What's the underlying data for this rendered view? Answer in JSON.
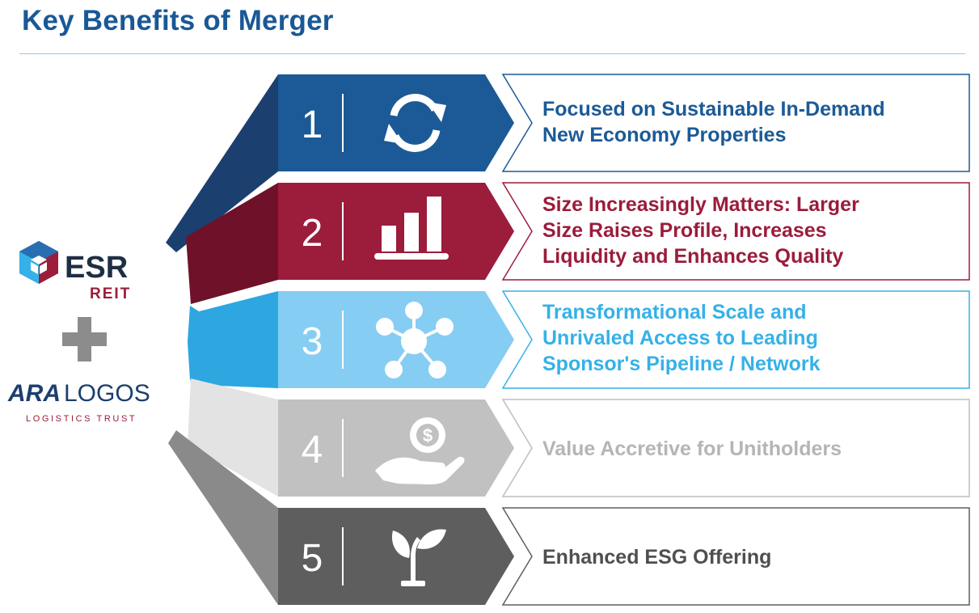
{
  "page": {
    "title": "Key Benefits of Merger"
  },
  "logos": {
    "esr": {
      "name": "ESR",
      "sub": "REIT"
    },
    "ara": {
      "prefix": "ARA",
      "name": "LOGOS",
      "sub": "LOGISTICS TRUST"
    },
    "plus_icon": "plus-icon"
  },
  "benefits": [
    {
      "number": "1",
      "icon": "refresh-icon",
      "color": "#1b5a96",
      "text_lines": [
        "Focused on Sustainable In-Demand",
        "New Economy Properties"
      ]
    },
    {
      "number": "2",
      "icon": "bar-chart-icon",
      "color": "#9b1c3b",
      "text_lines": [
        "Size Increasingly Matters: Larger",
        "Size Raises Profile, Increases",
        "Liquidity and Enhances Quality"
      ]
    },
    {
      "number": "3",
      "icon": "network-icon",
      "color": "#35b1e8",
      "text_lines": [
        "Transformational Scale and",
        "Unrivaled Access to Leading",
        "Sponsor's Pipeline / Network"
      ]
    },
    {
      "number": "4",
      "icon": "money-hand-icon",
      "color": "#bdbdbd",
      "text_lines": [
        "Value Accretive for Unitholders"
      ]
    },
    {
      "number": "5",
      "icon": "sprout-icon",
      "color": "#5e5e5e",
      "text_lines": [
        "Enhanced ESG Offering"
      ]
    }
  ]
}
